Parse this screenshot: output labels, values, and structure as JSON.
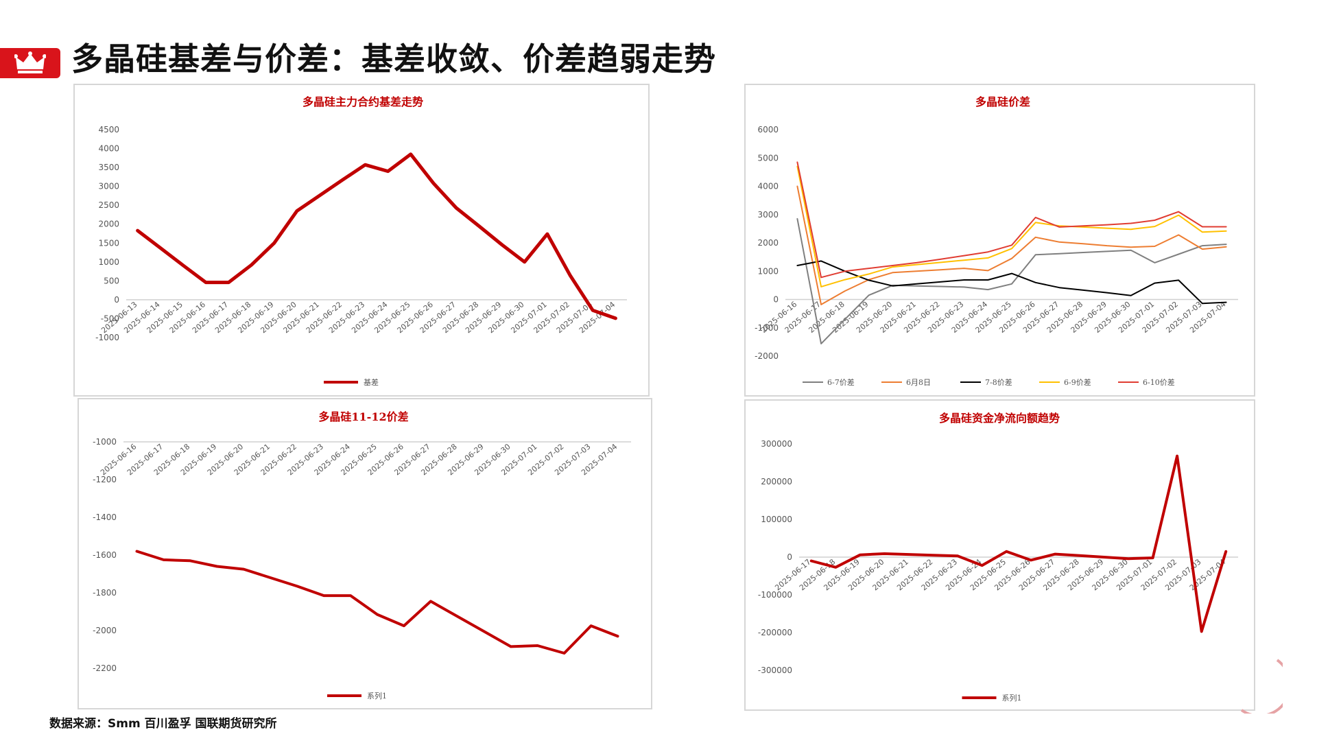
{
  "header": {
    "title": "多晶硅基差与价差：基差收敛、价差趋弱走势",
    "badge_icon": "crown-icon",
    "accent_color": "#d9141b"
  },
  "footer": {
    "source": "数据来源：Smm  百川盈孚  国联期货研究所"
  },
  "chart_data": [
    {
      "id": "basis",
      "type": "line",
      "title": "多晶硅主力合约基差走势",
      "categories": [
        "2025-06-13",
        "2025-06-14",
        "2025-06-15",
        "2025-06-16",
        "2025-06-17",
        "2025-06-18",
        "2025-06-19",
        "2025-06-20",
        "2025-06-21",
        "2025-06-22",
        "2025-06-23",
        "2025-06-24",
        "2025-06-25",
        "2025-06-26",
        "2025-06-27",
        "2025-06-28",
        "2025-06-29",
        "2025-06-30",
        "2025-07-01",
        "2025-07-02",
        "2025-07-03",
        "2025-07-04"
      ],
      "y_ticks": [
        -1000,
        -500,
        0,
        500,
        1000,
        1500,
        2000,
        2500,
        3000,
        3500,
        4000,
        4500
      ],
      "ylim": [
        -1000,
        4500
      ],
      "series": [
        {
          "name": "基差",
          "color": "#c00000",
          "width": 5,
          "values": [
            1830,
            1370,
            910,
            460,
            460,
            920,
            1500,
            2350,
            2760,
            3170,
            3570,
            3400,
            3850,
            3080,
            2430,
            1950,
            1460,
            1000,
            1740,
            650,
            -280,
            -490
          ]
        }
      ],
      "legend": "bottom"
    },
    {
      "id": "spread-months",
      "type": "line",
      "title": "多晶硅价差",
      "categories": [
        "2025-06-16",
        "2025-06-17",
        "2025-06-18",
        "2025-06-19",
        "2025-06-20",
        "2025-06-21",
        "2025-06-22",
        "2025-06-23",
        "2025-06-24",
        "2025-06-25",
        "2025-06-26",
        "2025-06-27",
        "2025-06-28",
        "2025-06-29",
        "2025-06-30",
        "2025-07-01",
        "2025-07-02",
        "2025-07-03",
        "2025-07-04"
      ],
      "y_ticks": [
        -2000,
        -1000,
        0,
        1000,
        2000,
        3000,
        4000,
        5000,
        6000
      ],
      "ylim": [
        -2000,
        6000
      ],
      "series": [
        {
          "name": "6-7价差",
          "color": "#7f7f7f",
          "width": 2,
          "values": [
            2850,
            -1560,
            -700,
            150,
            500,
            480,
            460,
            440,
            350,
            550,
            1580,
            1620,
            1660,
            1700,
            1740,
            1300,
            1600,
            1900,
            1950
          ]
        },
        {
          "name": "6月8日",
          "color": "#ed7d31",
          "width": 2,
          "values": [
            4000,
            -180,
            300,
            700,
            950,
            1000,
            1050,
            1100,
            1020,
            1450,
            2200,
            2030,
            1970,
            1900,
            1850,
            1880,
            2280,
            1780,
            1860
          ]
        },
        {
          "name": "7-8价差",
          "color": "#000000",
          "width": 2,
          "values": [
            1200,
            1360,
            1000,
            680,
            480,
            550,
            620,
            690,
            690,
            920,
            600,
            420,
            330,
            240,
            140,
            580,
            680,
            -140,
            -100
          ]
        },
        {
          "name": "6-9价差",
          "color": "#ffc000",
          "width": 2,
          "values": [
            4700,
            450,
            700,
            900,
            1150,
            1230,
            1310,
            1390,
            1470,
            1800,
            2720,
            2600,
            2560,
            2520,
            2480,
            2580,
            2980,
            2380,
            2420
          ]
        },
        {
          "name": "6-10价差",
          "color": "#e03c31",
          "width": 2,
          "values": [
            4850,
            780,
            1000,
            1100,
            1200,
            1300,
            1420,
            1550,
            1680,
            1920,
            2900,
            2560,
            2600,
            2640,
            2690,
            2800,
            3100,
            2570,
            2570
          ]
        }
      ],
      "legend": "bottom"
    },
    {
      "id": "spread-11-12",
      "type": "line",
      "title": "多晶硅11-12价差",
      "categories": [
        "2025-06-16",
        "2025-06-17",
        "2025-06-18",
        "2025-06-19",
        "2025-06-20",
        "2025-06-21",
        "2025-06-22",
        "2025-06-23",
        "2025-06-24",
        "2025-06-25",
        "2025-06-26",
        "2025-06-27",
        "2025-06-28",
        "2025-06-29",
        "2025-06-30",
        "2025-07-01",
        "2025-07-02",
        "2025-07-03",
        "2025-07-04"
      ],
      "y_ticks": [
        -2200,
        -2000,
        -1800,
        -1600,
        -1400,
        -1200,
        -1000
      ],
      "ylim": [
        -2200,
        -1000
      ],
      "series": [
        {
          "name": "系列1",
          "color": "#c00000",
          "width": 4,
          "values": [
            -1580,
            -1625,
            -1630,
            -1660,
            -1675,
            -1720,
            -1765,
            -1815,
            -1815,
            -1915,
            -1975,
            -1845,
            -1925,
            -2005,
            -2085,
            -2080,
            -2120,
            -1975,
            -2030
          ]
        }
      ],
      "legend": "bottom"
    },
    {
      "id": "fund-flow",
      "type": "line",
      "title": "多晶硅资金净流向额趋势",
      "categories": [
        "2025-06-17",
        "2025-06-18",
        "2025-06-19",
        "2025-06-20",
        "2025-06-21",
        "2025-06-22",
        "2025-06-23",
        "2025-06-24",
        "2025-06-25",
        "2025-06-26",
        "2025-06-27",
        "2025-06-28",
        "2025-06-29",
        "2025-06-30",
        "2025-07-01",
        "2025-07-02",
        "2025-07-03",
        "2025-07-04"
      ],
      "y_ticks": [
        -300000,
        -200000,
        -100000,
        0,
        100000,
        200000,
        300000
      ],
      "ylim": [
        -300000,
        300000
      ],
      "series": [
        {
          "name": "系列1",
          "color": "#c00000",
          "width": 4,
          "values": [
            -10000,
            -27000,
            6000,
            9000,
            7000,
            5000,
            3000,
            -22000,
            15000,
            -8000,
            8000,
            4000,
            0,
            -4000,
            -2000,
            268000,
            -197000,
            15000
          ]
        }
      ],
      "legend": "bottom"
    }
  ]
}
